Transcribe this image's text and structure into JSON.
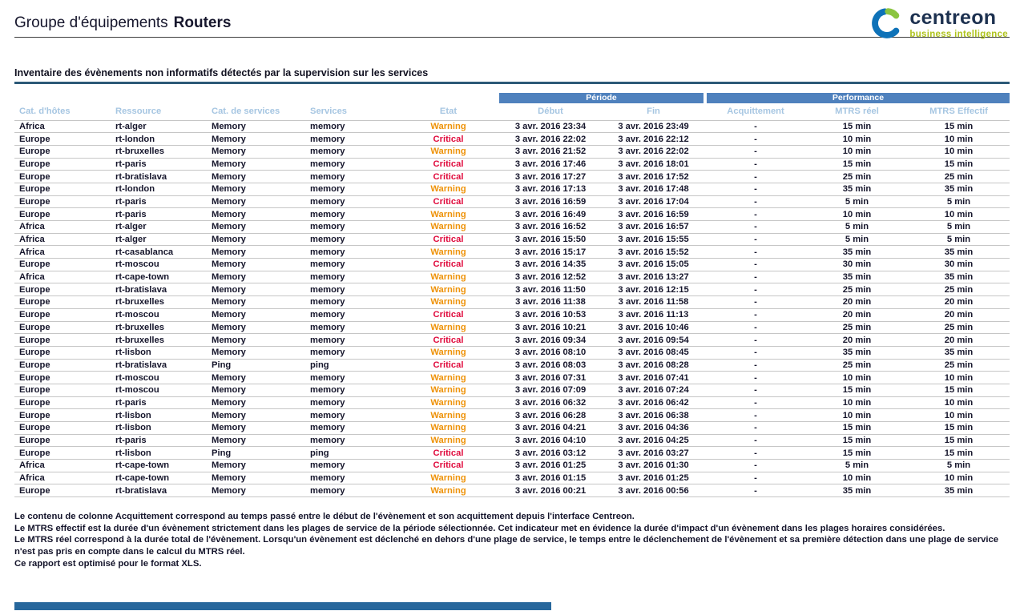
{
  "header": {
    "group_label": "Groupe d'équipements",
    "group_value": "Routers",
    "logo": {
      "brand": "centreon",
      "tagline": "business intelligence"
    }
  },
  "report": {
    "title": "Inventaire des évènements non informatifs détectés par la supervision sur les services"
  },
  "table": {
    "group_headers": {
      "period": "Période",
      "performance": "Performance"
    },
    "columns": [
      "Cat. d'hôtes",
      "Ressource",
      "Cat. de services",
      "Services",
      "Etat",
      "Début",
      "Fin",
      "Acquittement",
      "MTRS réel",
      "MTRS Effectif"
    ],
    "rows": [
      [
        "Africa",
        "rt-alger",
        "Memory",
        "memory",
        "Warning",
        "3 avr. 2016 23:34",
        "3 avr. 2016 23:49",
        "-",
        "15 min",
        "15 min"
      ],
      [
        "Europe",
        "rt-london",
        "Memory",
        "memory",
        "Critical",
        "3 avr. 2016 22:02",
        "3 avr. 2016 22:12",
        "-",
        "10 min",
        "10 min"
      ],
      [
        "Europe",
        "rt-bruxelles",
        "Memory",
        "memory",
        "Warning",
        "3 avr. 2016 21:52",
        "3 avr. 2016 22:02",
        "-",
        "10 min",
        "10 min"
      ],
      [
        "Europe",
        "rt-paris",
        "Memory",
        "memory",
        "Critical",
        "3 avr. 2016 17:46",
        "3 avr. 2016 18:01",
        "-",
        "15 min",
        "15 min"
      ],
      [
        "Europe",
        "rt-bratislava",
        "Memory",
        "memory",
        "Critical",
        "3 avr. 2016 17:27",
        "3 avr. 2016 17:52",
        "-",
        "25 min",
        "25 min"
      ],
      [
        "Europe",
        "rt-london",
        "Memory",
        "memory",
        "Warning",
        "3 avr. 2016 17:13",
        "3 avr. 2016 17:48",
        "-",
        "35 min",
        "35 min"
      ],
      [
        "Europe",
        "rt-paris",
        "Memory",
        "memory",
        "Critical",
        "3 avr. 2016 16:59",
        "3 avr. 2016 17:04",
        "-",
        "5 min",
        "5 min"
      ],
      [
        "Europe",
        "rt-paris",
        "Memory",
        "memory",
        "Warning",
        "3 avr. 2016 16:49",
        "3 avr. 2016 16:59",
        "-",
        "10 min",
        "10 min"
      ],
      [
        "Africa",
        "rt-alger",
        "Memory",
        "memory",
        "Warning",
        "3 avr. 2016 16:52",
        "3 avr. 2016 16:57",
        "-",
        "5 min",
        "5 min"
      ],
      [
        "Africa",
        "rt-alger",
        "Memory",
        "memory",
        "Critical",
        "3 avr. 2016 15:50",
        "3 avr. 2016 15:55",
        "-",
        "5 min",
        "5 min"
      ],
      [
        "Africa",
        "rt-casablanca",
        "Memory",
        "memory",
        "Warning",
        "3 avr. 2016 15:17",
        "3 avr. 2016 15:52",
        "-",
        "35 min",
        "35 min"
      ],
      [
        "Europe",
        "rt-moscou",
        "Memory",
        "memory",
        "Critical",
        "3 avr. 2016 14:35",
        "3 avr. 2016 15:05",
        "-",
        "30 min",
        "30 min"
      ],
      [
        "Africa",
        "rt-cape-town",
        "Memory",
        "memory",
        "Warning",
        "3 avr. 2016 12:52",
        "3 avr. 2016 13:27",
        "-",
        "35 min",
        "35 min"
      ],
      [
        "Europe",
        "rt-bratislava",
        "Memory",
        "memory",
        "Warning",
        "3 avr. 2016 11:50",
        "3 avr. 2016 12:15",
        "-",
        "25 min",
        "25 min"
      ],
      [
        "Europe",
        "rt-bruxelles",
        "Memory",
        "memory",
        "Warning",
        "3 avr. 2016 11:38",
        "3 avr. 2016 11:58",
        "-",
        "20 min",
        "20 min"
      ],
      [
        "Europe",
        "rt-moscou",
        "Memory",
        "memory",
        "Critical",
        "3 avr. 2016 10:53",
        "3 avr. 2016 11:13",
        "-",
        "20 min",
        "20 min"
      ],
      [
        "Europe",
        "rt-bruxelles",
        "Memory",
        "memory",
        "Warning",
        "3 avr. 2016 10:21",
        "3 avr. 2016 10:46",
        "-",
        "25 min",
        "25 min"
      ],
      [
        "Europe",
        "rt-bruxelles",
        "Memory",
        "memory",
        "Critical",
        "3 avr. 2016 09:34",
        "3 avr. 2016 09:54",
        "-",
        "20 min",
        "20 min"
      ],
      [
        "Europe",
        "rt-lisbon",
        "Memory",
        "memory",
        "Warning",
        "3 avr. 2016 08:10",
        "3 avr. 2016 08:45",
        "-",
        "35 min",
        "35 min"
      ],
      [
        "Europe",
        "rt-bratislava",
        "Ping",
        "ping",
        "Critical",
        "3 avr. 2016 08:03",
        "3 avr. 2016 08:28",
        "-",
        "25 min",
        "25 min"
      ],
      [
        "Europe",
        "rt-moscou",
        "Memory",
        "memory",
        "Warning",
        "3 avr. 2016 07:31",
        "3 avr. 2016 07:41",
        "-",
        "10 min",
        "10 min"
      ],
      [
        "Europe",
        "rt-moscou",
        "Memory",
        "memory",
        "Warning",
        "3 avr. 2016 07:09",
        "3 avr. 2016 07:24",
        "-",
        "15 min",
        "15 min"
      ],
      [
        "Europe",
        "rt-paris",
        "Memory",
        "memory",
        "Warning",
        "3 avr. 2016 06:32",
        "3 avr. 2016 06:42",
        "-",
        "10 min",
        "10 min"
      ],
      [
        "Europe",
        "rt-lisbon",
        "Memory",
        "memory",
        "Warning",
        "3 avr. 2016 06:28",
        "3 avr. 2016 06:38",
        "-",
        "10 min",
        "10 min"
      ],
      [
        "Europe",
        "rt-lisbon",
        "Memory",
        "memory",
        "Warning",
        "3 avr. 2016 04:21",
        "3 avr. 2016 04:36",
        "-",
        "15 min",
        "15 min"
      ],
      [
        "Europe",
        "rt-paris",
        "Memory",
        "memory",
        "Warning",
        "3 avr. 2016 04:10",
        "3 avr. 2016 04:25",
        "-",
        "15 min",
        "15 min"
      ],
      [
        "Europe",
        "rt-lisbon",
        "Ping",
        "ping",
        "Critical",
        "3 avr. 2016 03:12",
        "3 avr. 2016 03:27",
        "-",
        "15 min",
        "15 min"
      ],
      [
        "Africa",
        "rt-cape-town",
        "Memory",
        "memory",
        "Critical",
        "3 avr. 2016 01:25",
        "3 avr. 2016 01:30",
        "-",
        "5 min",
        "5 min"
      ],
      [
        "Africa",
        "rt-cape-town",
        "Memory",
        "memory",
        "Warning",
        "3 avr. 2016 01:15",
        "3 avr. 2016 01:25",
        "-",
        "10 min",
        "10 min"
      ],
      [
        "Europe",
        "rt-bratislava",
        "Memory",
        "memory",
        "Warning",
        "3 avr. 2016 00:21",
        "3 avr. 2016 00:56",
        "-",
        "35 min",
        "35 min"
      ]
    ]
  },
  "footer": {
    "notes": [
      "Le contenu de colonne Acquittement correspond au temps passé entre le début de l'évènement et son acquittement depuis l'interface Centreon.",
      "Le MTRS effectif est la durée d'un évènement strictement dans les plages de service de la période sélectionnée. Cet indicateur met en évidence la durée d'impact d'un évènement dans les plages horaires considérées.",
      "Le MTRS réel correspond à la durée total de l'évènement. Lorsqu'un évènement est déclenché en dehors d'une plage de service, le temps entre le déclenchement de l'évènement et sa première détection dans une plage de service n'est pas pris en compte dans le calcul du MTRS réel.",
      "Ce rapport est optimisé pour le format XLS."
    ]
  },
  "colors": {
    "header_bar": "#4F81BD",
    "column_text": "#A6C6E2",
    "warning": "#EE9208",
    "critical": "#E00B3D"
  }
}
